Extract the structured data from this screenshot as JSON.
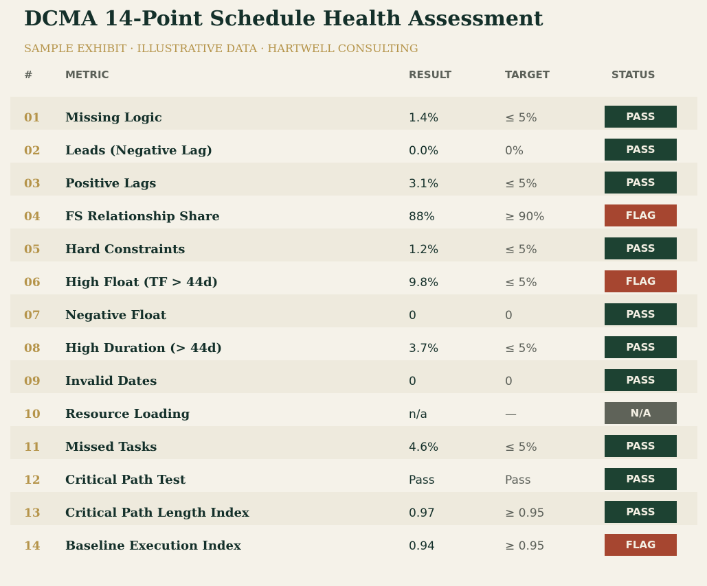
{
  "title": "DCMA 14-Point Schedule Health Assessment",
  "subtitle": "SAMPLE EXHIBIT  ·  ILLUSTRATIVE DATA  ·  HARTWELL CONSULTING",
  "columns": {
    "num": "#",
    "metric": "METRIC",
    "result": "RESULT",
    "target": "TARGET",
    "status": "STATUS"
  },
  "colors": {
    "pass": "#1d4232",
    "flag": "#a64630",
    "na": "#5f6359",
    "accent": "#b5944a"
  },
  "rows": [
    {
      "num": "01",
      "metric": "Missing Logic",
      "result": "1.4%",
      "target": "≤ 5%",
      "status": "PASS"
    },
    {
      "num": "02",
      "metric": "Leads (Negative Lag)",
      "result": "0.0%",
      "target": "0%",
      "status": "PASS"
    },
    {
      "num": "03",
      "metric": "Positive Lags",
      "result": "3.1%",
      "target": "≤ 5%",
      "status": "PASS"
    },
    {
      "num": "04",
      "metric": "FS Relationship Share",
      "result": "88%",
      "target": "≥ 90%",
      "status": "FLAG"
    },
    {
      "num": "05",
      "metric": "Hard Constraints",
      "result": "1.2%",
      "target": "≤ 5%",
      "status": "PASS"
    },
    {
      "num": "06",
      "metric": "High Float (TF > 44d)",
      "result": "9.8%",
      "target": "≤ 5%",
      "status": "FLAG"
    },
    {
      "num": "07",
      "metric": "Negative Float",
      "result": "0",
      "target": "0",
      "status": "PASS"
    },
    {
      "num": "08",
      "metric": "High Duration (> 44d)",
      "result": "3.7%",
      "target": "≤ 5%",
      "status": "PASS"
    },
    {
      "num": "09",
      "metric": "Invalid Dates",
      "result": "0",
      "target": "0",
      "status": "PASS"
    },
    {
      "num": "10",
      "metric": "Resource Loading",
      "result": "n/a",
      "target": "—",
      "status": "N/A"
    },
    {
      "num": "11",
      "metric": "Missed Tasks",
      "result": "4.6%",
      "target": "≤ 5%",
      "status": "PASS"
    },
    {
      "num": "12",
      "metric": "Critical Path Test",
      "result": "Pass",
      "target": "Pass",
      "status": "PASS"
    },
    {
      "num": "13",
      "metric": "Critical Path Length Index",
      "result": "0.97",
      "target": "≥ 0.95",
      "status": "PASS"
    },
    {
      "num": "14",
      "metric": "Baseline Execution Index",
      "result": "0.94",
      "target": "≥ 0.95",
      "status": "FLAG"
    }
  ]
}
